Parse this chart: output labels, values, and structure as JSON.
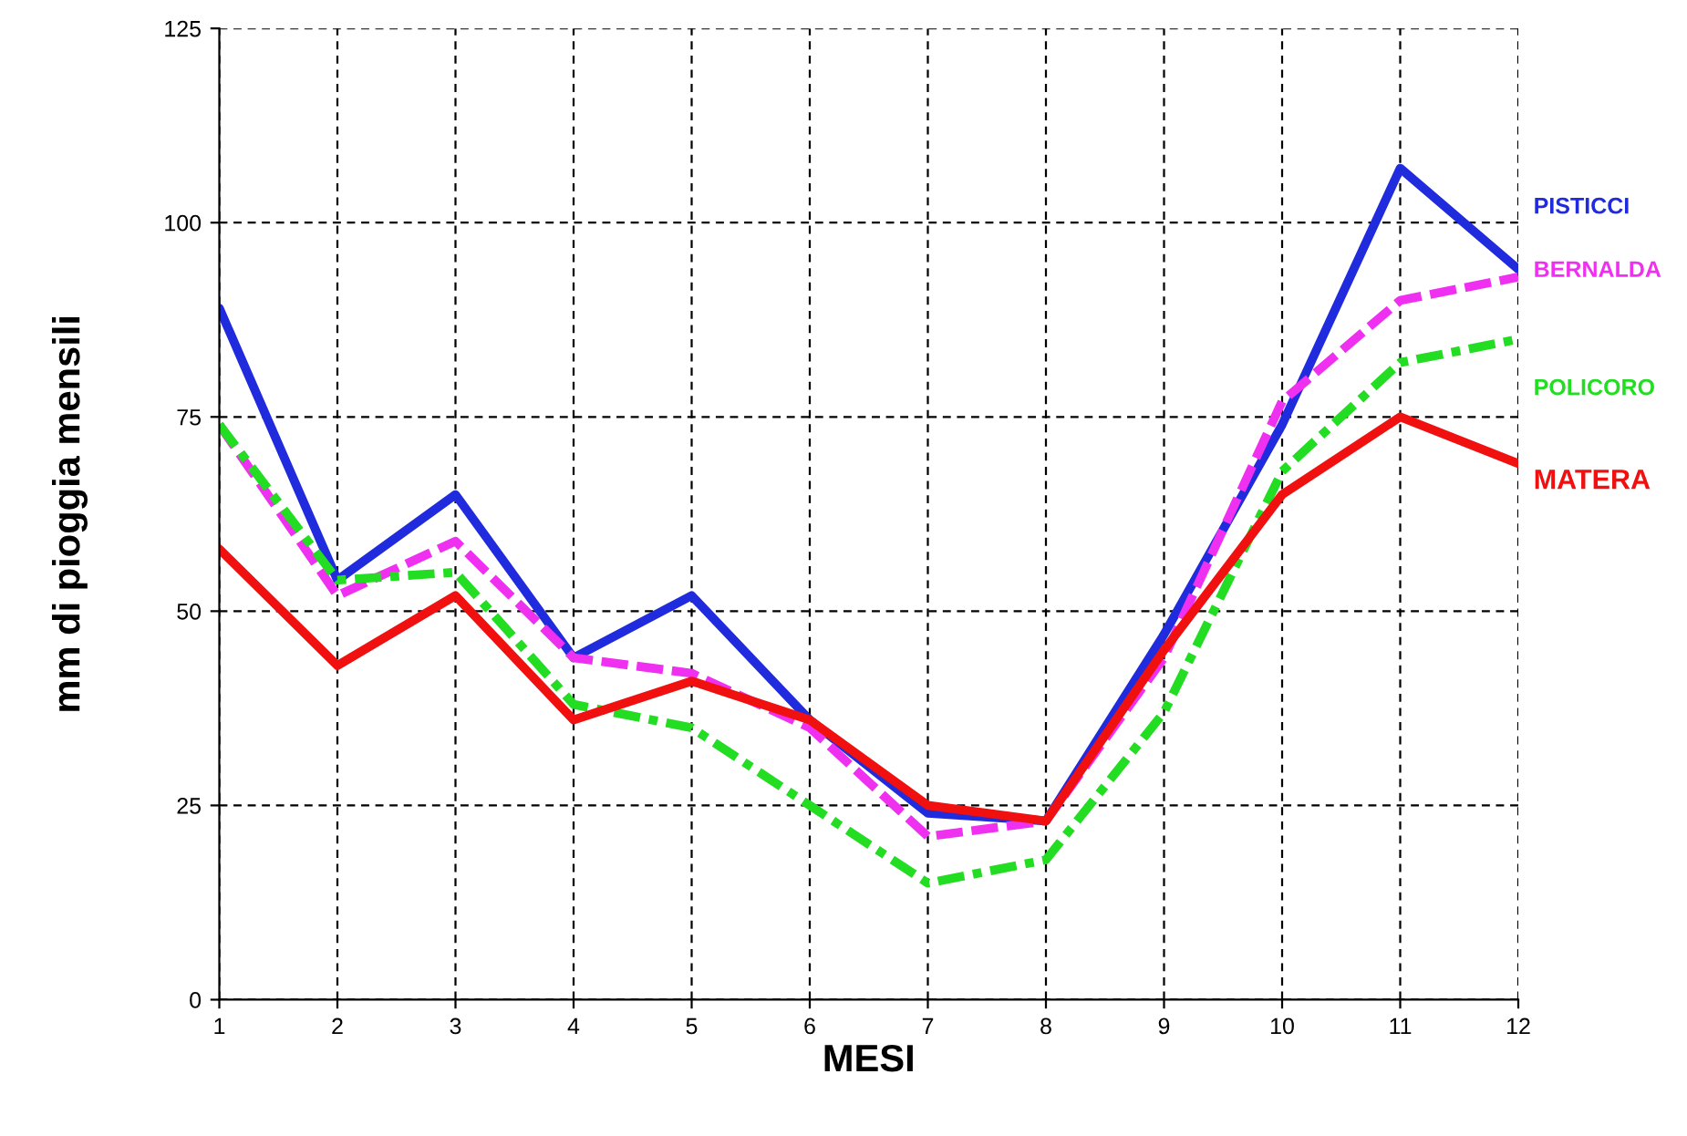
{
  "chart_data": {
    "type": "line",
    "xlabel": "MESI",
    "ylabel": "mm di pioggia mensili",
    "x": [
      1,
      2,
      3,
      4,
      5,
      6,
      7,
      8,
      9,
      10,
      11,
      12
    ],
    "xlim": [
      1,
      12
    ],
    "ylim": [
      0,
      125
    ],
    "xticks": [
      1,
      2,
      3,
      4,
      5,
      6,
      7,
      8,
      9,
      10,
      11,
      12
    ],
    "yticks": [
      0,
      25,
      50,
      75,
      100,
      125
    ],
    "grid": true,
    "legend": false,
    "series": [
      {
        "name": "PISTICCI",
        "color": "#1f2bdc",
        "line_style": "solid",
        "values": [
          89,
          54,
          65,
          44,
          52,
          36,
          24,
          23,
          47,
          74,
          107,
          94
        ]
      },
      {
        "name": "BERNALDA",
        "color": "#f030f0",
        "line_style": "dashed",
        "values": [
          74,
          52,
          59,
          44,
          42,
          35,
          21,
          23,
          44,
          77,
          90,
          93
        ]
      },
      {
        "name": "POLICORO",
        "color": "#22dd22",
        "line_style": "dashdot",
        "values": [
          74,
          54,
          55,
          38,
          35,
          25,
          15,
          18,
          37,
          68,
          82,
          85
        ]
      },
      {
        "name": "MATERA",
        "color": "#f01010",
        "line_style": "solid",
        "values": [
          58,
          43,
          52,
          36,
          41,
          36,
          25,
          23,
          45,
          65,
          75,
          69
        ]
      }
    ]
  }
}
